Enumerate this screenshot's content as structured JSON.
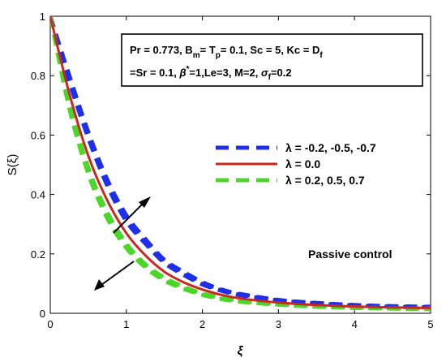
{
  "chart_data": {
    "type": "line",
    "xlabel": "ξ",
    "ylabel": "S(ξ)",
    "xlim": [
      0,
      5
    ],
    "ylim": [
      0,
      1
    ],
    "xticks": [
      "0",
      "1",
      "2",
      "3",
      "4",
      "5"
    ],
    "yticks": [
      "0",
      "0.2",
      "0.4",
      "0.6",
      "0.8",
      "1"
    ],
    "x": [
      0,
      0.25,
      0.5,
      0.75,
      1.0,
      1.25,
      1.5,
      1.75,
      2.0,
      2.25,
      2.5,
      3.0,
      3.5,
      4.0,
      4.5,
      5.0
    ],
    "series": [
      {
        "name": "λ = -0.2, -0.5, -0.7",
        "color": "#1f2fe8",
        "style": "dashed",
        "curves": [
          [
            1.0,
            0.8,
            0.61,
            0.45,
            0.33,
            0.25,
            0.18,
            0.14,
            0.105,
            0.08,
            0.065,
            0.045,
            0.035,
            0.028,
            0.024,
            0.022
          ],
          [
            1.0,
            0.79,
            0.6,
            0.44,
            0.32,
            0.24,
            0.175,
            0.135,
            0.1,
            0.078,
            0.063,
            0.044,
            0.034,
            0.027,
            0.023,
            0.021
          ],
          [
            1.0,
            0.78,
            0.59,
            0.43,
            0.31,
            0.235,
            0.17,
            0.13,
            0.097,
            0.076,
            0.061,
            0.043,
            0.033,
            0.026,
            0.022,
            0.02
          ]
        ]
      },
      {
        "name": "λ = 0.0",
        "color": "#c8281e",
        "style": "solid",
        "curves": [
          [
            1.0,
            0.74,
            0.53,
            0.38,
            0.27,
            0.195,
            0.14,
            0.105,
            0.08,
            0.062,
            0.05,
            0.036,
            0.028,
            0.023,
            0.02,
            0.018
          ]
        ]
      },
      {
        "name": "λ = 0.2, 0.5, 0.7",
        "color": "#4cd62a",
        "style": "dashed",
        "curves": [
          [
            1.0,
            0.71,
            0.49,
            0.34,
            0.235,
            0.165,
            0.12,
            0.09,
            0.067,
            0.052,
            0.042,
            0.031,
            0.024,
            0.02,
            0.017,
            0.016
          ],
          [
            1.0,
            0.7,
            0.48,
            0.33,
            0.228,
            0.16,
            0.115,
            0.086,
            0.064,
            0.05,
            0.04,
            0.03,
            0.023,
            0.019,
            0.016,
            0.015
          ],
          [
            1.0,
            0.69,
            0.47,
            0.32,
            0.22,
            0.155,
            0.11,
            0.083,
            0.062,
            0.048,
            0.039,
            0.029,
            0.022,
            0.018,
            0.016,
            0.014
          ]
        ]
      }
    ],
    "params": {
      "line1": [
        "Pr = 0.773, B",
        "m",
        "= T",
        "p",
        "= 0.1, Sc = 5, Kc = D",
        "f"
      ],
      "line2": [
        "=Sr = 0.1,  ",
        "β",
        "*",
        "=1,Le=3, M=2, ",
        "σ",
        "f",
        "=0.2"
      ]
    },
    "annotation": "Passive control",
    "legend_position": "right-middle"
  }
}
